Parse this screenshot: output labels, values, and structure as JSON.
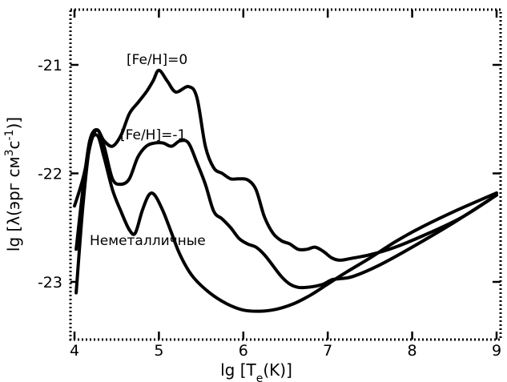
{
  "chart_data": {
    "type": "line",
    "xlabel": "lg [T",
    "xlabel_sub": "e",
    "xlabel_end": "(K)]",
    "ylabel": "lg [λ(эрг см",
    "ylabel_sup1": "3",
    "ylabel_mid": "с",
    "ylabel_sup2": "-1",
    "ylabel_end": ")]",
    "xlim": [
      4,
      9
    ],
    "ylim": [
      -23.5,
      -20.5
    ],
    "xticks": [
      4,
      5,
      6,
      7,
      8,
      9
    ],
    "xtick_labels": [
      "4",
      "5",
      "6",
      "7",
      "8",
      "9"
    ],
    "yticks": [
      -23,
      -22,
      -21
    ],
    "ytick_labels": [
      "-23",
      "-22",
      "-21"
    ],
    "grid": false,
    "legend": "inline labels",
    "series": [
      {
        "name": "[Fe/H]=0",
        "x": [
          4.0,
          4.1,
          4.2,
          4.27,
          4.35,
          4.45,
          4.55,
          4.65,
          4.75,
          4.85,
          4.93,
          5.0,
          5.1,
          5.2,
          5.35,
          5.45,
          5.55,
          5.65,
          5.75,
          5.85,
          5.95,
          6.05,
          6.15,
          6.25,
          6.35,
          6.45,
          6.55,
          6.65,
          6.75,
          6.85,
          6.95,
          7.05,
          7.15,
          7.3,
          7.5,
          7.8,
          8.2,
          8.6,
          9.0
        ],
        "y": [
          -22.3,
          -22.05,
          -21.7,
          -21.6,
          -21.7,
          -21.75,
          -21.65,
          -21.45,
          -21.35,
          -21.25,
          -21.15,
          -21.05,
          -21.15,
          -21.25,
          -21.2,
          -21.3,
          -21.75,
          -21.95,
          -22.0,
          -22.05,
          -22.05,
          -22.06,
          -22.15,
          -22.4,
          -22.55,
          -22.62,
          -22.65,
          -22.7,
          -22.7,
          -22.68,
          -22.72,
          -22.78,
          -22.8,
          -22.78,
          -22.75,
          -22.68,
          -22.55,
          -22.4,
          -22.2
        ]
      },
      {
        "name": "[Fe/H]=-1",
        "x": [
          4.02,
          4.1,
          4.18,
          4.27,
          4.35,
          4.45,
          4.55,
          4.65,
          4.75,
          4.85,
          4.95,
          5.05,
          5.15,
          5.25,
          5.35,
          5.45,
          5.55,
          5.65,
          5.75,
          5.85,
          5.95,
          6.05,
          6.15,
          6.25,
          6.35,
          6.45,
          6.55,
          6.65,
          6.75,
          6.85,
          6.95,
          7.05,
          7.15,
          7.3,
          7.6,
          8.0,
          8.5,
          9.0
        ],
        "y": [
          -22.7,
          -22.15,
          -21.7,
          -21.6,
          -21.75,
          -22.05,
          -22.1,
          -22.05,
          -21.85,
          -21.75,
          -21.72,
          -21.72,
          -21.75,
          -21.7,
          -21.72,
          -21.9,
          -22.1,
          -22.35,
          -22.42,
          -22.5,
          -22.6,
          -22.65,
          -22.68,
          -22.75,
          -22.85,
          -22.95,
          -23.02,
          -23.05,
          -23.05,
          -23.04,
          -23.02,
          -22.98,
          -22.97,
          -22.95,
          -22.85,
          -22.68,
          -22.45,
          -22.2
        ]
      },
      {
        "name": "Неметалличные",
        "x": [
          4.02,
          4.1,
          4.18,
          4.27,
          4.35,
          4.45,
          4.55,
          4.65,
          4.72,
          4.8,
          4.88,
          4.95,
          5.05,
          5.15,
          5.25,
          5.4,
          5.6,
          5.8,
          6.0,
          6.2,
          6.4,
          6.6,
          6.8,
          7.0,
          7.2,
          7.5,
          7.8,
          8.1,
          8.5,
          9.0
        ],
        "y": [
          -23.1,
          -22.3,
          -21.75,
          -21.65,
          -21.85,
          -22.15,
          -22.35,
          -22.52,
          -22.55,
          -22.35,
          -22.2,
          -22.2,
          -22.35,
          -22.55,
          -22.75,
          -22.95,
          -23.1,
          -23.2,
          -23.26,
          -23.27,
          -23.25,
          -23.2,
          -23.12,
          -23.02,
          -22.92,
          -22.78,
          -22.63,
          -22.5,
          -22.35,
          -22.18
        ]
      }
    ],
    "annotations": [
      "[Fe/H]=0",
      "[Fe/H]=-1",
      "Неметалличные"
    ]
  }
}
